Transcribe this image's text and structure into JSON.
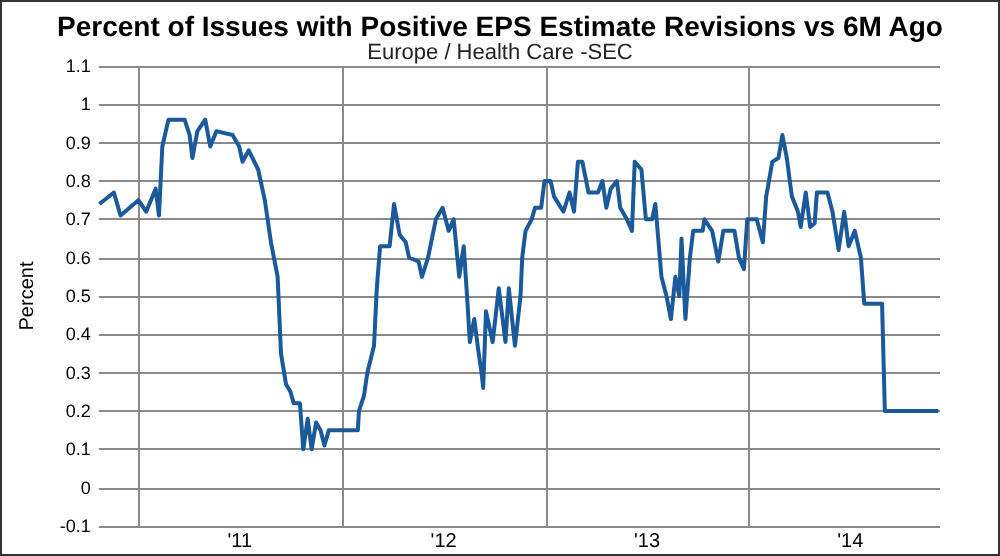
{
  "chart_data": {
    "type": "line",
    "title": "Percent of Issues with Positive EPS Estimate Revisions vs 6M Ago",
    "subtitle": "Europe / Health Care -SEC",
    "ylabel": "Percent",
    "x": [
      "2010-10-23",
      "2010-11-18",
      "2010-11-30",
      "2011-01-01",
      "2011-01-15",
      "2011-02-01",
      "2011-02-07",
      "2011-02-13",
      "2011-02-24",
      "2011-03-25",
      "2011-04-03",
      "2011-04-08",
      "2011-04-17",
      "2011-05-01",
      "2011-05-10",
      "2011-05-21",
      "2011-06-19",
      "2011-07-01",
      "2011-07-07",
      "2011-07-18",
      "2011-08-04",
      "2011-08-16",
      "2011-08-27",
      "2011-09-08",
      "2011-09-14",
      "2011-09-23",
      "2011-10-01",
      "2011-10-07",
      "2011-10-18",
      "2011-10-24",
      "2011-11-01",
      "2011-11-08",
      "2011-11-16",
      "2011-11-24",
      "2011-12-01",
      "2011-12-09",
      "2012-01-01",
      "2012-01-30",
      "2012-02-01",
      "2012-02-10",
      "2012-02-16",
      "2012-02-28",
      "2012-03-04",
      "2012-03-10",
      "2012-03-27",
      "2012-04-04",
      "2012-04-14",
      "2012-04-25",
      "2012-05-01",
      "2012-05-18",
      "2012-05-24",
      "2012-06-04",
      "2012-06-18",
      "2012-06-30",
      "2012-07-11",
      "2012-07-20",
      "2012-07-30",
      "2012-08-07",
      "2012-08-13",
      "2012-08-18",
      "2012-08-26",
      "2012-09-02",
      "2012-09-08",
      "2012-09-11",
      "2012-09-16",
      "2012-09-28",
      "2012-10-09",
      "2012-10-21",
      "2012-10-27",
      "2012-11-07",
      "2012-11-17",
      "2012-11-20",
      "2012-11-26",
      "2012-12-07",
      "2012-12-13",
      "2012-12-24",
      "2012-12-30",
      "2013-01-10",
      "2013-01-16",
      "2013-02-02",
      "2013-02-13",
      "2013-02-21",
      "2013-02-28",
      "2013-03-08",
      "2013-03-19",
      "2013-04-05",
      "2013-04-13",
      "2013-04-20",
      "2013-04-28",
      "2013-05-09",
      "2013-05-15",
      "2013-05-27",
      "2013-06-05",
      "2013-06-10",
      "2013-06-22",
      "2013-06-30",
      "2013-07-11",
      "2013-07-17",
      "2013-07-28",
      "2013-08-06",
      "2013-08-14",
      "2013-08-22",
      "2013-08-29",
      "2013-09-02",
      "2013-09-09",
      "2013-09-17",
      "2013-09-23",
      "2013-10-10",
      "2013-10-13",
      "2013-10-27",
      "2013-11-07",
      "2013-11-16",
      "2013-12-06",
      "2013-12-14",
      "2013-12-23",
      "2013-12-29",
      "2014-01-15",
      "2014-01-26",
      "2014-02-01",
      "2014-02-12",
      "2014-02-23",
      "2014-03-02",
      "2014-03-10",
      "2014-03-19",
      "2014-03-30",
      "2014-04-04",
      "2014-04-13",
      "2014-04-21",
      "2014-04-29",
      "2014-05-03",
      "2014-05-22",
      "2014-05-31",
      "2014-06-11",
      "2014-06-21",
      "2014-06-29",
      "2014-07-10",
      "2014-07-21",
      "2014-07-27",
      "2014-08-02",
      "2014-08-28",
      "2014-09-02",
      "2014-09-07",
      "2014-12-07"
    ],
    "series": [
      {
        "color": "#1b5a9a",
        "values": [
          0.74,
          0.77,
          0.71,
          0.75,
          0.72,
          0.78,
          0.71,
          0.89,
          0.96,
          0.96,
          0.92,
          0.86,
          0.93,
          0.96,
          0.89,
          0.93,
          0.92,
          0.89,
          0.85,
          0.88,
          0.83,
          0.75,
          0.64,
          0.55,
          0.35,
          0.27,
          0.25,
          0.22,
          0.22,
          0.1,
          0.18,
          0.1,
          0.17,
          0.15,
          0.11,
          0.15,
          0.15,
          0.15,
          0.2,
          0.24,
          0.3,
          0.37,
          0.52,
          0.63,
          0.63,
          0.74,
          0.66,
          0.64,
          0.6,
          0.59,
          0.55,
          0.6,
          0.7,
          0.73,
          0.67,
          0.7,
          0.55,
          0.63,
          0.5,
          0.38,
          0.44,
          0.36,
          0.3,
          0.26,
          0.46,
          0.38,
          0.52,
          0.38,
          0.52,
          0.37,
          0.5,
          0.6,
          0.67,
          0.7,
          0.73,
          0.73,
          0.8,
          0.8,
          0.76,
          0.72,
          0.77,
          0.72,
          0.85,
          0.85,
          0.77,
          0.77,
          0.8,
          0.73,
          0.78,
          0.8,
          0.73,
          0.7,
          0.67,
          0.85,
          0.83,
          0.7,
          0.7,
          0.74,
          0.55,
          0.5,
          0.44,
          0.55,
          0.5,
          0.65,
          0.44,
          0.6,
          0.67,
          0.67,
          0.7,
          0.67,
          0.59,
          0.67,
          0.67,
          0.6,
          0.57,
          0.7,
          0.7,
          0.64,
          0.76,
          0.85,
          0.86,
          0.92,
          0.86,
          0.76,
          0.72,
          0.68,
          0.77,
          0.68,
          0.69,
          0.77,
          0.77,
          0.72,
          0.62,
          0.72,
          0.63,
          0.67,
          0.6,
          0.48,
          0.48,
          0.48,
          0.2,
          0.2,
          0.2
        ]
      }
    ],
    "xlim": [
      "2010-10-22",
      "2014-12-10"
    ],
    "xticks": [
      {
        "value": "2011-01-01",
        "label": null
      },
      {
        "value": "2011-07-02",
        "label": "'11"
      },
      {
        "value": "2012-01-01",
        "label": null
      },
      {
        "value": "2012-07-02",
        "label": "'12"
      },
      {
        "value": "2013-01-01",
        "label": null
      },
      {
        "value": "2013-07-02",
        "label": "'13"
      },
      {
        "value": "2014-01-01",
        "label": null
      },
      {
        "value": "2014-07-02",
        "label": "'14"
      }
    ],
    "ylim": [
      -0.1,
      1.1
    ],
    "yticks": [
      -0.1,
      0,
      0.1,
      0.2,
      0.3,
      0.4,
      0.5,
      0.6,
      0.7,
      0.8,
      0.9,
      1,
      1.1
    ],
    "grid": true,
    "marker": "none",
    "line_style": "solid"
  }
}
